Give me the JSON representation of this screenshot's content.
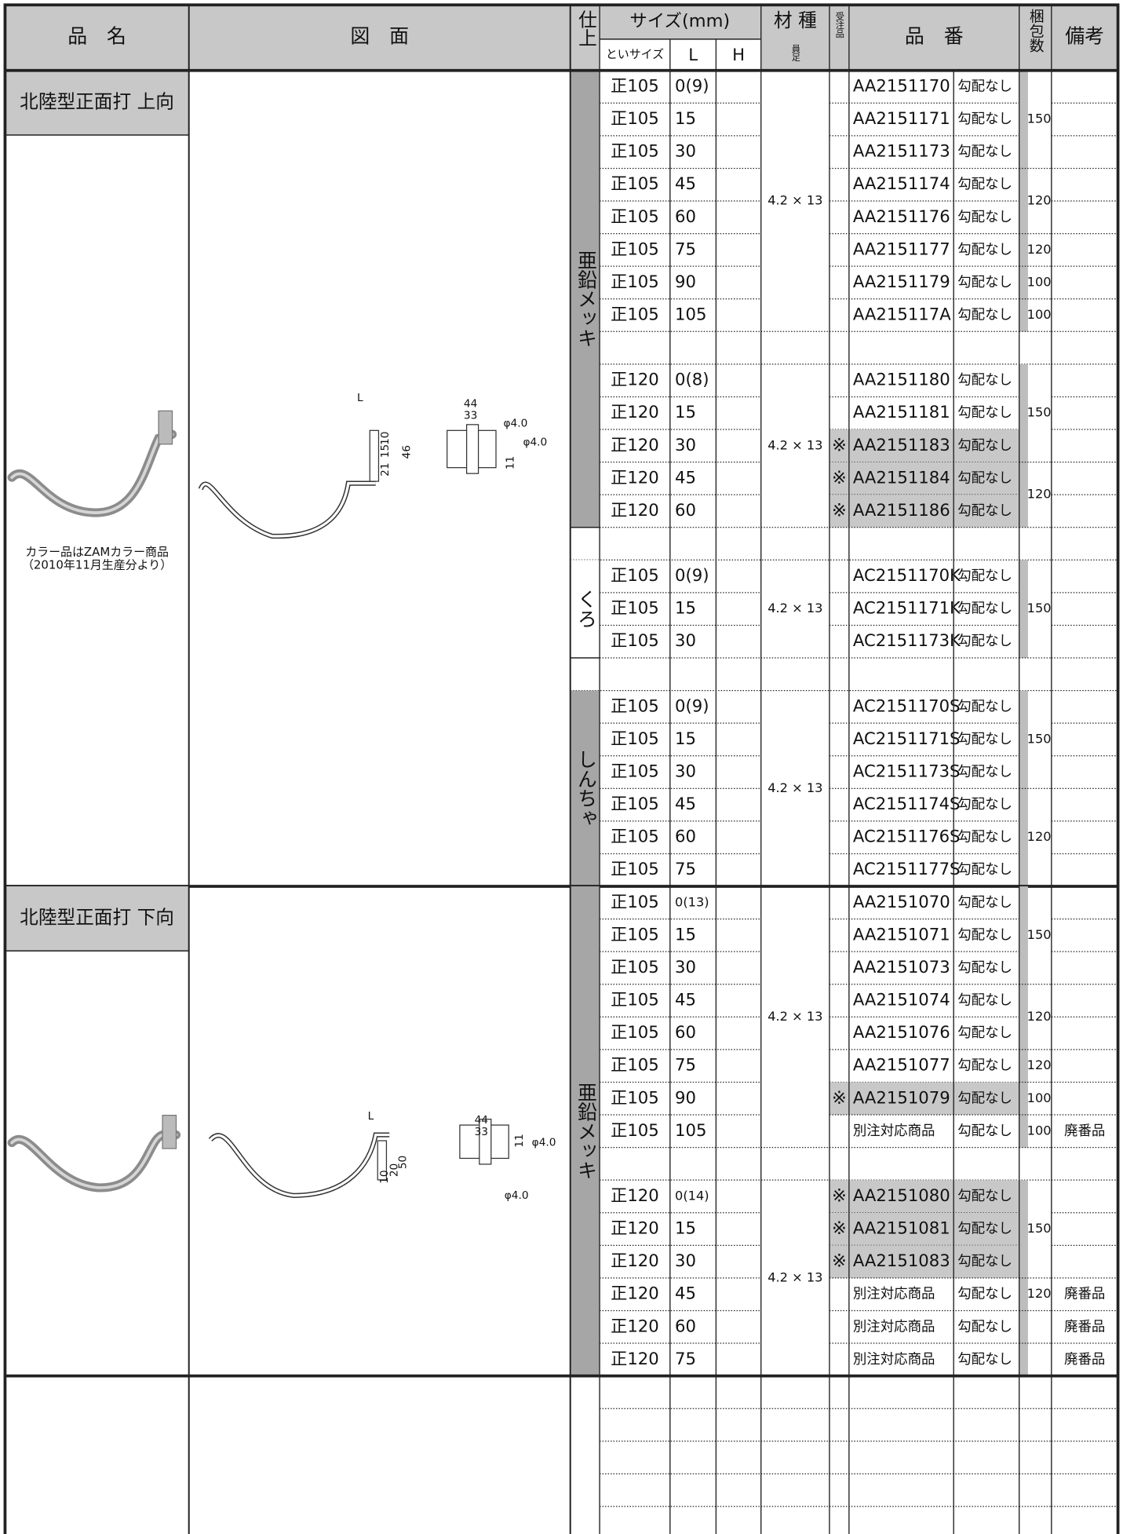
{
  "header": {
    "name": "品　名",
    "drawing": "図　面",
    "finish": "仕上",
    "size": "サイズ(mm)",
    "trough": "といサイズ",
    "L": "L",
    "H": "H",
    "material": "材 種",
    "material_sub": "員足",
    "order": "受注品",
    "code": "品　番",
    "pack": "梱包数",
    "remark": "備考"
  },
  "sections": [
    {
      "name": "北陸型正面打 上向",
      "note": [
        "カラー品はZAMカラー商品",
        "（2010年11月生産分より）"
      ],
      "drawing_labels": [
        "L",
        "44",
        "33",
        "φ4.0",
        "φ4.0",
        "46",
        "21",
        "15",
        "10",
        "11"
      ],
      "groups": [
        {
          "finish": "亜鉛メッキ",
          "color": "#a6a6a6",
          "blocks": [
            {
              "material": "4.2 × 13",
              "rows": [
                {
                  "size": "正105",
                  "L": "0(9)",
                  "code": "AA2151170",
                  "slope": "勾配なし"
                },
                {
                  "size": "正105",
                  "L": "15",
                  "code": "AA2151171",
                  "slope": "勾配なし"
                },
                {
                  "size": "正105",
                  "L": "30",
                  "code": "AA2151173",
                  "slope": "勾配なし"
                },
                {
                  "size": "正105",
                  "L": "45",
                  "code": "AA2151174",
                  "slope": "勾配なし"
                },
                {
                  "size": "正105",
                  "L": "60",
                  "code": "AA2151176",
                  "slope": "勾配なし"
                },
                {
                  "size": "正105",
                  "L": "75",
                  "code": "AA2151177",
                  "slope": "勾配なし"
                },
                {
                  "size": "正105",
                  "L": "90",
                  "code": "AA2151179",
                  "slope": "勾配なし"
                },
                {
                  "size": "正105",
                  "L": "105",
                  "code": "AA215117A",
                  "slope": "勾配なし"
                }
              ],
              "packs": [
                {
                  "qty": 150,
                  "span": 3
                },
                {
                  "qty": 120,
                  "span": 2
                },
                {
                  "qty": 120,
                  "span": 1
                },
                {
                  "qty": 100,
                  "span": 1
                },
                {
                  "qty": 100,
                  "span": 1
                }
              ]
            },
            {
              "material": "4.2 × 13",
              "rows": [
                {
                  "size": "正120",
                  "L": "0(8)",
                  "code": "AA2151180",
                  "slope": "勾配なし"
                },
                {
                  "size": "正120",
                  "L": "15",
                  "code": "AA2151181",
                  "slope": "勾配なし"
                },
                {
                  "size": "正120",
                  "L": "30",
                  "order": "※",
                  "code": "AA2151183",
                  "slope": "勾配なし"
                },
                {
                  "size": "正120",
                  "L": "45",
                  "order": "※",
                  "code": "AA2151184",
                  "slope": "勾配なし"
                },
                {
                  "size": "正120",
                  "L": "60",
                  "order": "※",
                  "code": "AA2151186",
                  "slope": "勾配なし"
                }
              ],
              "packs": [
                {
                  "qty": 150,
                  "span": 3
                },
                {
                  "qty": 120,
                  "span": 2
                }
              ]
            }
          ]
        },
        {
          "finish": "くろ",
          "color": "#ffffff",
          "blocks": [
            {
              "material": "4.2 × 13",
              "rows": [
                {
                  "size": "正105",
                  "L": "0(9)",
                  "code": "AC2151170K",
                  "slope": "勾配なし"
                },
                {
                  "size": "正105",
                  "L": "15",
                  "code": "AC2151171K",
                  "slope": "勾配なし"
                },
                {
                  "size": "正105",
                  "L": "30",
                  "code": "AC2151173K",
                  "slope": "勾配なし"
                }
              ],
              "packs": [
                {
                  "qty": 150,
                  "span": 3
                }
              ]
            }
          ]
        },
        {
          "finish": "しんちゃ",
          "color": "#a6a6a6",
          "blocks": [
            {
              "material": "4.2 × 13",
              "rows": [
                {
                  "size": "正105",
                  "L": "0(9)",
                  "code": "AC2151170S",
                  "slope": "勾配なし"
                },
                {
                  "size": "正105",
                  "L": "15",
                  "code": "AC2151171S",
                  "slope": "勾配なし"
                },
                {
                  "size": "正105",
                  "L": "30",
                  "code": "AC2151173S",
                  "slope": "勾配なし"
                },
                {
                  "size": "正105",
                  "L": "45",
                  "code": "AC2151174S",
                  "slope": "勾配なし"
                },
                {
                  "size": "正105",
                  "L": "60",
                  "code": "AC2151176S",
                  "slope": "勾配なし"
                },
                {
                  "size": "正105",
                  "L": "75",
                  "code": "AC2151177S",
                  "slope": "勾配なし"
                }
              ],
              "packs": [
                {
                  "qty": 150,
                  "span": 3
                },
                {
                  "qty": 120,
                  "span": 3
                }
              ]
            }
          ]
        }
      ]
    },
    {
      "name": "北陸型正面打 下向",
      "drawing_labels": [
        "L",
        "44",
        "33",
        "φ4.0",
        "φ4.0",
        "50",
        "20",
        "10",
        "11"
      ],
      "groups": [
        {
          "finish": "亜鉛メッキ",
          "color": "#a6a6a6",
          "blocks": [
            {
              "material": "4.2 × 13",
              "rows": [
                {
                  "size": "正105",
                  "L": "0(13)",
                  "code": "AA2151070",
                  "slope": "勾配なし"
                },
                {
                  "size": "正105",
                  "L": "15",
                  "code": "AA2151071",
                  "slope": "勾配なし"
                },
                {
                  "size": "正105",
                  "L": "30",
                  "code": "AA2151073",
                  "slope": "勾配なし"
                },
                {
                  "size": "正105",
                  "L": "45",
                  "code": "AA2151074",
                  "slope": "勾配なし"
                },
                {
                  "size": "正105",
                  "L": "60",
                  "code": "AA2151076",
                  "slope": "勾配なし"
                },
                {
                  "size": "正105",
                  "L": "75",
                  "code": "AA2151077",
                  "slope": "勾配なし"
                },
                {
                  "size": "正105",
                  "L": "90",
                  "order": "※",
                  "code": "AA2151079",
                  "slope": "勾配なし"
                },
                {
                  "size": "正105",
                  "L": "105",
                  "code": "別注対応商品",
                  "slope": "勾配なし",
                  "remark": "廃番品"
                }
              ],
              "packs": [
                {
                  "qty": 150,
                  "span": 3
                },
                {
                  "qty": 120,
                  "span": 2
                },
                {
                  "qty": 120,
                  "span": 1
                },
                {
                  "qty": 100,
                  "span": 1
                },
                {
                  "qty": 100,
                  "span": 1
                }
              ]
            },
            {
              "material": "4.2 × 13",
              "rows": [
                {
                  "size": "正120",
                  "L": "0(14)",
                  "order": "※",
                  "code": "AA2151080",
                  "slope": "勾配なし"
                },
                {
                  "size": "正120",
                  "L": "15",
                  "order": "※",
                  "code": "AA2151081",
                  "slope": "勾配なし"
                },
                {
                  "size": "正120",
                  "L": "30",
                  "order": "※",
                  "code": "AA2151083",
                  "slope": "勾配なし"
                },
                {
                  "size": "正120",
                  "L": "45",
                  "code": "別注対応商品",
                  "slope": "勾配なし",
                  "remark": "廃番品"
                },
                {
                  "size": "正120",
                  "L": "60",
                  "code": "別注対応商品",
                  "slope": "勾配なし",
                  "remark": "廃番品"
                },
                {
                  "size": "正120",
                  "L": "75",
                  "code": "別注対応商品",
                  "slope": "勾配なし",
                  "remark": "廃番品"
                }
              ],
              "packs": [
                {
                  "qty": 150,
                  "span": 3
                },
                {
                  "qty": 120,
                  "span": 1
                },
                {
                  "span": 1
                },
                {
                  "span": 1
                }
              ]
            }
          ]
        }
      ]
    }
  ]
}
